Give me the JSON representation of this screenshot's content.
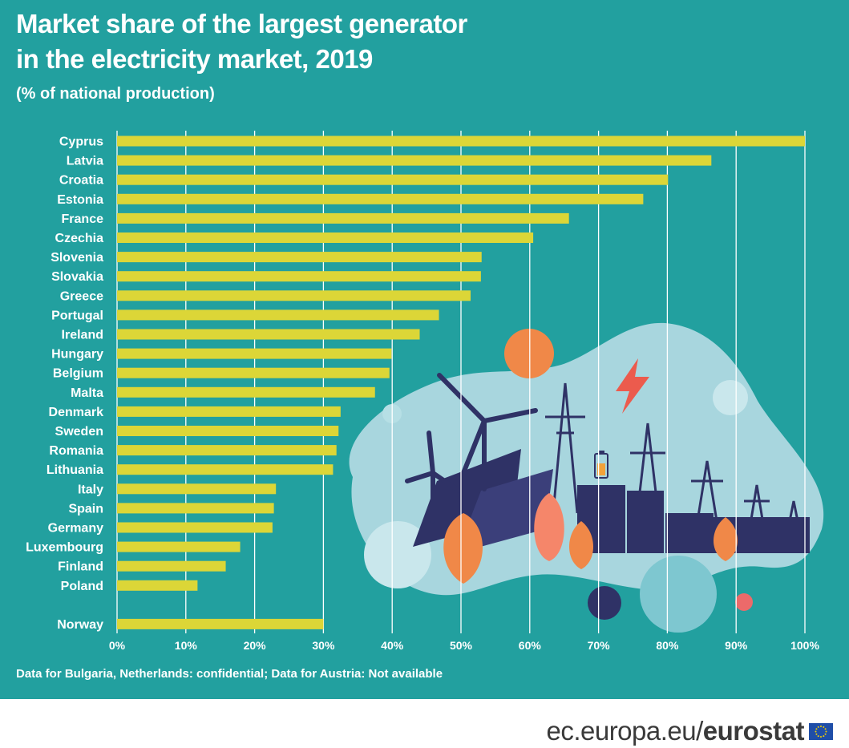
{
  "header": {
    "title_line1": "Market share of the largest generator",
    "title_line2": "in the electricity market, 2019",
    "subtitle": "(% of national production)"
  },
  "footnote": "Data for Bulgaria, Netherlands: confidential; Data for Austria: Not available",
  "footer": {
    "url": "ec.europa.eu/",
    "brand": "eurostat"
  },
  "colors": {
    "background": "#22a09f",
    "bar": "#dcd637",
    "grid": "#ffffff",
    "text": "#ffffff"
  },
  "chart_data": {
    "type": "bar",
    "orientation": "horizontal",
    "title": "Market share of the largest generator in the electricity market, 2019",
    "subtitle": "(% of national production)",
    "xlabel": "",
    "ylabel": "",
    "xlim": [
      0,
      100
    ],
    "grid": true,
    "categories": [
      "Cyprus",
      "Latvia",
      "Croatia",
      "Estonia",
      "France",
      "Czechia",
      "Slovenia",
      "Slovakia",
      "Greece",
      "Portugal",
      "Ireland",
      "Hungary",
      "Belgium",
      "Malta",
      "Denmark",
      "Sweden",
      "Romania",
      "Lithuania",
      "Italy",
      "Spain",
      "Germany",
      "Luxembourg",
      "Finland",
      "Poland",
      "Norway"
    ],
    "values": [
      100,
      86.4,
      80.1,
      76.5,
      65.7,
      60.5,
      53.0,
      52.9,
      51.4,
      46.8,
      44.0,
      39.9,
      39.6,
      37.5,
      32.5,
      32.2,
      31.9,
      31.4,
      23.1,
      22.8,
      22.6,
      17.9,
      15.8,
      11.7,
      30.0
    ],
    "separated_categories": [
      "Norway"
    ],
    "ticks": [
      0,
      10,
      20,
      30,
      40,
      50,
      60,
      70,
      80,
      90,
      100
    ],
    "tick_labels": [
      "0%",
      "10%",
      "20%",
      "30%",
      "40%",
      "50%",
      "60%",
      "70%",
      "80%",
      "90%",
      "100%"
    ]
  }
}
